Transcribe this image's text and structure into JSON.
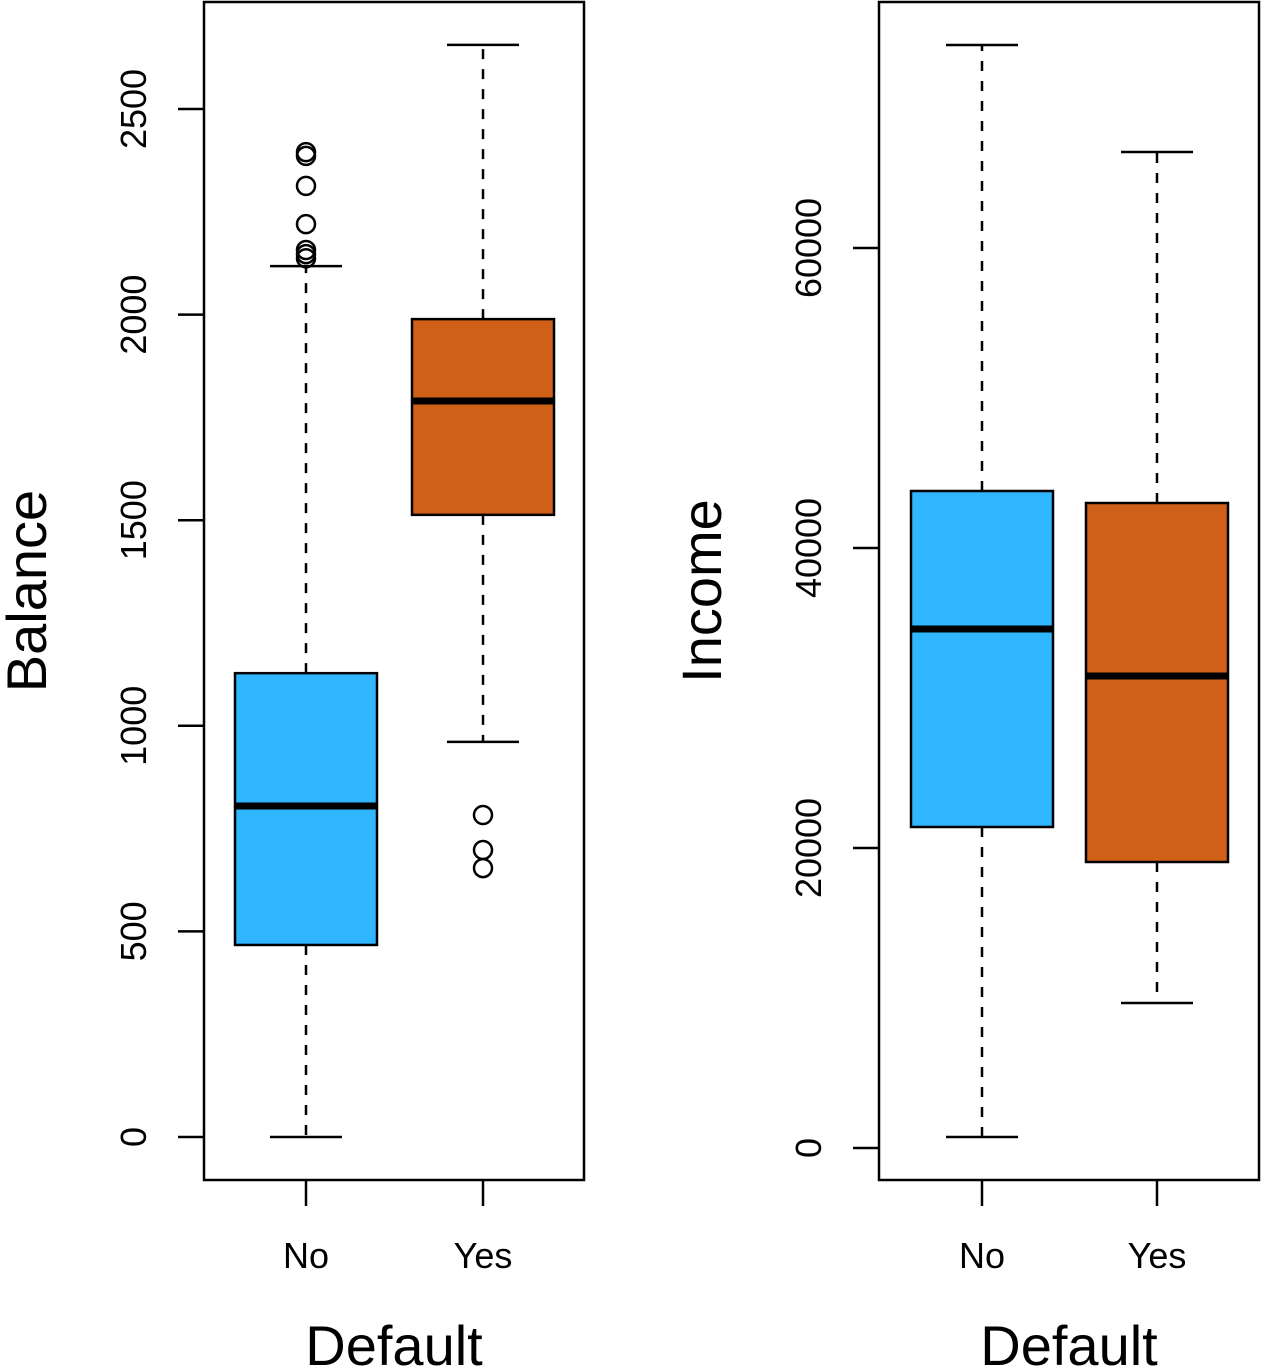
{
  "chart_data": [
    {
      "type": "boxplot",
      "title": "",
      "xlabel": "Default",
      "ylabel": "Balance",
      "ylim": [
        0,
        2656
      ],
      "yticks": [
        "0",
        "500",
        "1000",
        "1500",
        "2000",
        "2500"
      ],
      "ytick_values": [
        0,
        500,
        1000,
        1500,
        2000,
        2500
      ],
      "categories": [
        "No",
        "Yes"
      ],
      "grid": false,
      "boxes": [
        {
          "name": "No",
          "color": "#30B6FF",
          "whisker_low": 0,
          "q1": 467,
          "median": 805,
          "q3": 1128,
          "whisker_high": 2118,
          "outliers": [
            2137,
            2147,
            2157,
            2220,
            2313,
            2386,
            2395
          ]
        },
        {
          "name": "Yes",
          "color": "#D06018",
          "whisker_low": 961,
          "q1": 1513,
          "median": 1790,
          "q3": 1989,
          "whisker_high": 2656,
          "outliers": [
            654,
            698,
            783
          ]
        }
      ]
    },
    {
      "type": "boxplot",
      "title": "",
      "xlabel": "Default",
      "ylabel": "Income",
      "ylim": [
        0,
        73533
      ],
      "yticks": [
        "0",
        "20000",
        "40000",
        "60000"
      ],
      "ytick_values": [
        0,
        20000,
        40000,
        60000
      ],
      "categories": [
        "No",
        "Yes"
      ],
      "grid": false,
      "boxes": [
        {
          "name": "No",
          "color": "#30B6FF",
          "whisker_low": 733,
          "q1": 21400,
          "median": 34600,
          "q3": 43800,
          "whisker_high": 73533,
          "outliers": []
        },
        {
          "name": "Yes",
          "color": "#D06018",
          "whisker_low": 9667,
          "q1": 19067,
          "median": 31467,
          "q3": 43000,
          "whisker_high": 66400,
          "outliers": []
        }
      ]
    }
  ]
}
